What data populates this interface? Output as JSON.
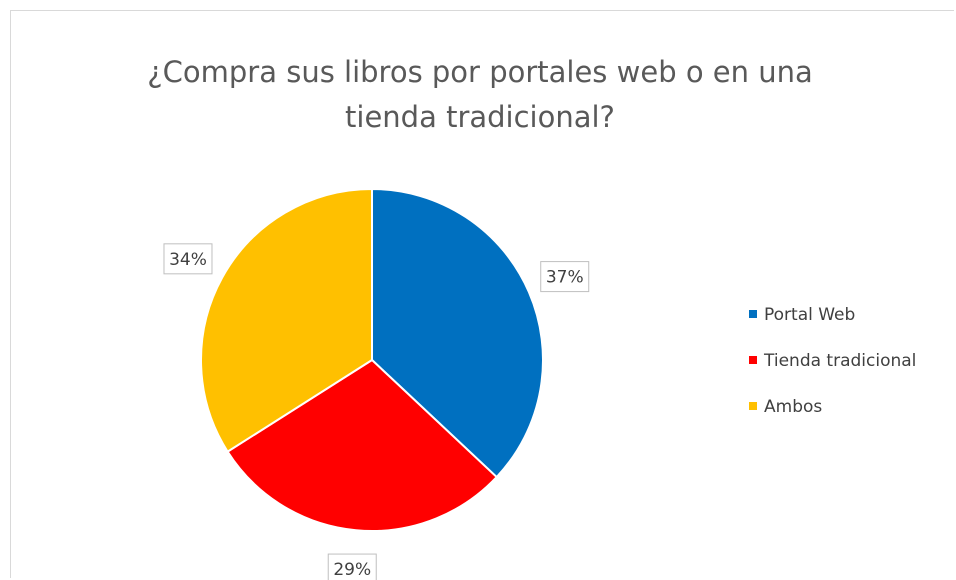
{
  "chart_data": {
    "type": "pie",
    "title": "¿Compra sus libros por portales web o en una tienda tradicional?",
    "categories": [
      "Portal Web",
      "Tienda tradicional",
      "Ambos"
    ],
    "values": [
      37,
      29,
      34
    ],
    "value_labels": [
      "37%",
      "29%",
      "34%"
    ],
    "colors": [
      "#0070c0",
      "#ff0000",
      "#ffc000"
    ],
    "legend": "right"
  }
}
